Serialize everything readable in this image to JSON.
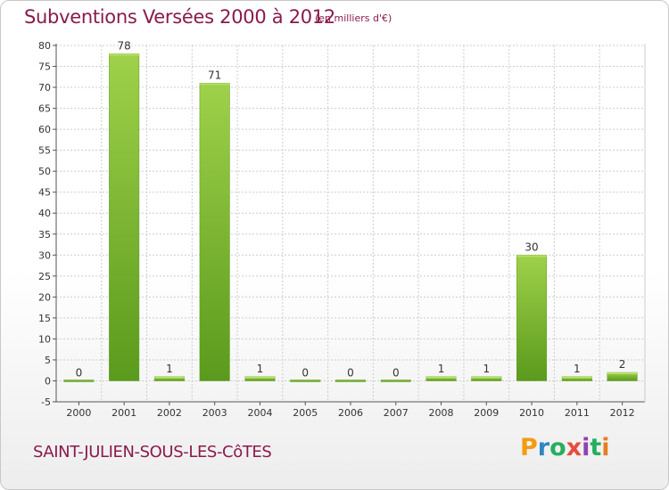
{
  "header": {
    "title": "Subventions Versées 2000 à 2012",
    "unit": "(en milliers d'€)"
  },
  "footer": {
    "commune": "SAINT-JULIEN-SOUS-LES-CôTES",
    "logo_text": "Proxiti",
    "logo_colors": [
      "#f39c12",
      "#2e86c1",
      "#27ae60",
      "#e74c3c",
      "#8e44ad",
      "#27ae60",
      "#e67e22"
    ]
  },
  "chart_data": {
    "type": "bar",
    "title": "Subventions Versées 2000 à 2012",
    "subtitle": "(en milliers d'€)",
    "categories": [
      "2000",
      "2001",
      "2002",
      "2003",
      "2004",
      "2005",
      "2006",
      "2007",
      "2008",
      "2009",
      "2010",
      "2011",
      "2012"
    ],
    "values": [
      0,
      78,
      1,
      71,
      1,
      0,
      0,
      0,
      1,
      1,
      30,
      1,
      2
    ],
    "data_labels": [
      "0",
      "78",
      "1",
      "71",
      "1",
      "0",
      "0",
      "0",
      "1",
      "1",
      "30",
      "1",
      "2"
    ],
    "ylim": [
      -5,
      80
    ],
    "yticks": [
      -5,
      0,
      5,
      10,
      15,
      20,
      25,
      30,
      35,
      40,
      45,
      50,
      55,
      60,
      65,
      70,
      75,
      80
    ],
    "grid": true,
    "bar_color": "#7cb82f",
    "bar_color_light": "#9fd14a",
    "bar_color_dark": "#5a9a1c",
    "axis_color": "#555555",
    "grid_color": "#cccccc"
  }
}
